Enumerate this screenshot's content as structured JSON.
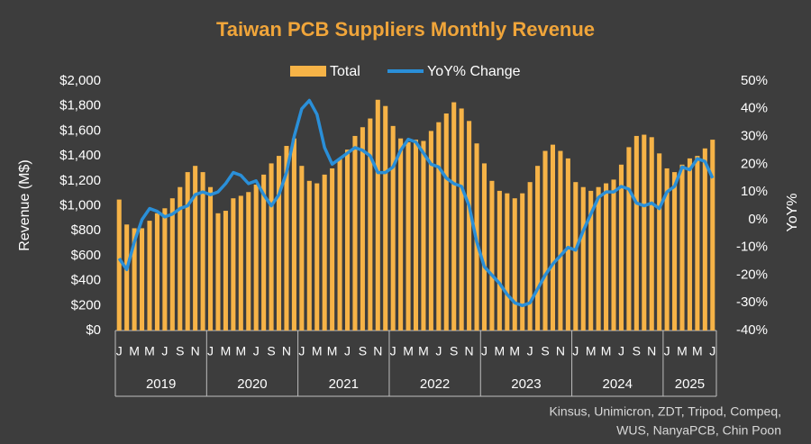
{
  "chart_data": {
    "type": "bar-line",
    "title": "Taiwan PCB Suppliers Monthly Revenue",
    "y_label": "Revenue (M$)",
    "y2_label": "YoY%",
    "categories": [
      "J",
      null,
      "M",
      null,
      "M",
      null,
      "J",
      null,
      "S",
      null,
      "N",
      null,
      "J",
      null,
      "M",
      null,
      "M",
      null,
      "J",
      null,
      "S",
      null,
      "N",
      null,
      "J",
      null,
      "M",
      null,
      "M",
      null,
      "J",
      null,
      "S",
      null,
      "N",
      null,
      "J",
      null,
      "M",
      null,
      "M",
      null,
      "J",
      null,
      "S",
      null,
      "N",
      null,
      "J",
      null,
      "M",
      null,
      "M",
      null,
      "J",
      null,
      "S",
      null,
      "N",
      null,
      "J",
      null,
      "M",
      null,
      "M",
      null,
      "J",
      null,
      "S",
      null,
      "N",
      null,
      "J",
      null,
      "M",
      null,
      "M",
      null,
      "J"
    ],
    "groups": [
      "2019",
      "2020",
      "2021",
      "2022",
      "2023",
      "2024",
      "2025"
    ],
    "series": [
      {
        "name": "Total",
        "kind": "bar",
        "color": "#f6b347",
        "values": [
          1050,
          850,
          820,
          820,
          880,
          940,
          980,
          1060,
          1150,
          1270,
          1320,
          1270,
          1150,
          940,
          960,
          1060,
          1080,
          1110,
          1170,
          1250,
          1340,
          1400,
          1480,
          1540,
          1320,
          1200,
          1180,
          1250,
          1300,
          1380,
          1450,
          1560,
          1630,
          1700,
          1850,
          1800,
          1640,
          1540,
          1510,
          1530,
          1520,
          1600,
          1670,
          1740,
          1830,
          1780,
          1680,
          1500,
          1340,
          1200,
          1120,
          1100,
          1060,
          1100,
          1190,
          1320,
          1440,
          1490,
          1440,
          1380,
          1190,
          1150,
          1120,
          1150,
          1180,
          1210,
          1330,
          1470,
          1560,
          1570,
          1550,
          1420,
          1300,
          1270,
          1330,
          1380,
          1400,
          1460,
          1530
        ]
      },
      {
        "name": "YoY% Change",
        "kind": "line",
        "axis": "y2",
        "color": "#2a8fd8",
        "values": [
          -14,
          -18,
          -8,
          0,
          4,
          3,
          1,
          2,
          4,
          5,
          9,
          10,
          9,
          10,
          13,
          17,
          16,
          13,
          14,
          9,
          5,
          9,
          17,
          30,
          40,
          43,
          38,
          26,
          20,
          22,
          24,
          26,
          25,
          23,
          17,
          17,
          19,
          25,
          29,
          28,
          24,
          20,
          19,
          15,
          13,
          12,
          5,
          -8,
          -17,
          -20,
          -23,
          -27,
          -30,
          -31,
          -30,
          -25,
          -20,
          -16,
          -13,
          -10,
          -11,
          -4,
          2,
          8,
          10,
          10,
          12,
          11,
          6,
          5,
          6,
          4,
          10,
          12,
          19,
          18,
          22,
          21,
          15
        ]
      }
    ],
    "ylim": [
      0,
      2000
    ],
    "yticks": [
      {
        "value": 0,
        "label": "$0"
      },
      {
        "value": 200,
        "label": "$200"
      },
      {
        "value": 400,
        "label": "$400"
      },
      {
        "value": 600,
        "label": "$600"
      },
      {
        "value": 800,
        "label": "$800"
      },
      {
        "value": 1000,
        "label": "$1,000"
      },
      {
        "value": 1200,
        "label": "$1,200"
      },
      {
        "value": 1400,
        "label": "$1,400"
      },
      {
        "value": 1600,
        "label": "$1,600"
      },
      {
        "value": 1800,
        "label": "$1,800"
      },
      {
        "value": 2000,
        "label": "$2,000"
      }
    ],
    "y2lim": [
      -40,
      50
    ],
    "y2ticks": [
      {
        "value": -40,
        "label": "-40%"
      },
      {
        "value": -30,
        "label": "-30%"
      },
      {
        "value": -20,
        "label": "-20%"
      },
      {
        "value": -10,
        "label": "-10%"
      },
      {
        "value": 0,
        "label": "0%"
      },
      {
        "value": 10,
        "label": "10%"
      },
      {
        "value": 20,
        "label": "20%"
      },
      {
        "value": 30,
        "label": "30%"
      },
      {
        "value": 40,
        "label": "40%"
      },
      {
        "value": 50,
        "label": "50%"
      }
    ],
    "source": [
      "Kinsus, Unimicron, ZDT, Tripod, Compeq,",
      "WUS, NanyaPCB, Chin Poon"
    ]
  }
}
